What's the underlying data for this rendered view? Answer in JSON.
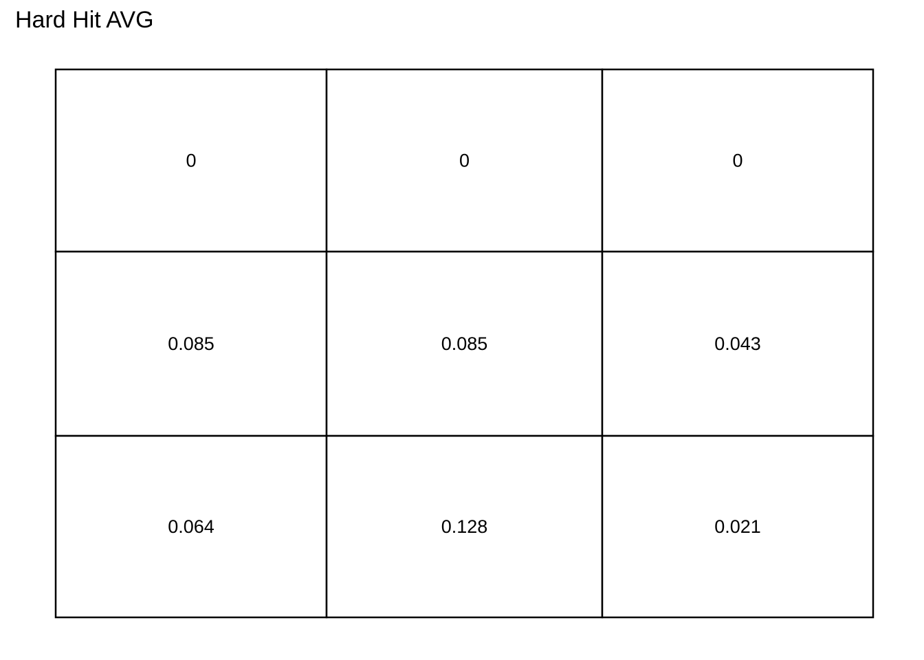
{
  "chart_data": {
    "type": "heatmap",
    "title": "Hard Hit AVG",
    "rows": 3,
    "cols": 3,
    "values": [
      [
        "0",
        "0",
        "0"
      ],
      [
        "0.085",
        "0.085",
        "0.043"
      ],
      [
        "0.064",
        "0.128",
        "0.021"
      ]
    ],
    "grid": true,
    "line_color": "#000000",
    "fill_color": "#ffffff",
    "text_color": "#000000"
  }
}
